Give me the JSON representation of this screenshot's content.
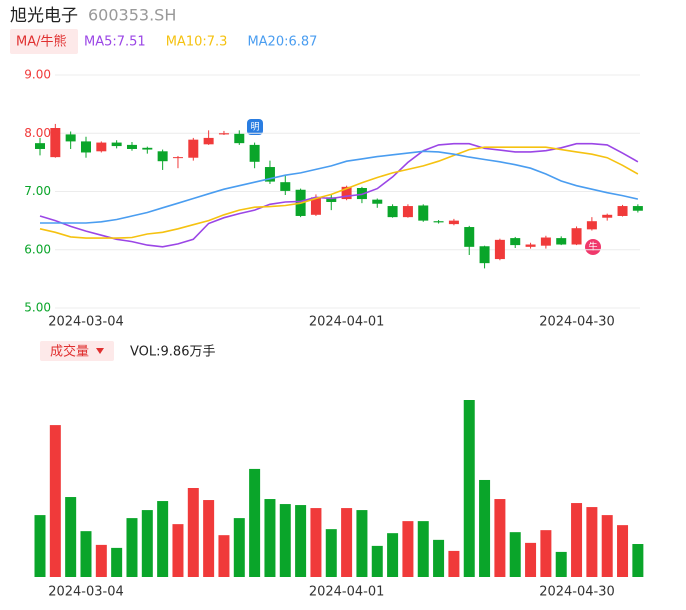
{
  "header": {
    "title": "旭光电子",
    "code": "600353.SH",
    "legend_title": "MA/牛熊",
    "annotations": [
      "明",
      "牛"
    ]
  },
  "chart_data": [
    {
      "type": "candlestick",
      "categories": [
        "2024-03-04",
        null,
        null,
        null,
        null,
        null,
        null,
        null,
        null,
        null,
        null,
        null,
        null,
        null,
        null,
        null,
        null,
        null,
        null,
        null,
        "2024-04-01",
        null,
        null,
        null,
        null,
        null,
        null,
        null,
        null,
        null,
        null,
        null,
        null,
        null,
        null,
        null,
        null,
        null,
        null,
        "2024-04-30"
      ],
      "open": [
        7.83,
        7.59,
        7.98,
        7.86,
        7.69,
        7.84,
        7.8,
        7.75,
        7.69,
        7.58,
        7.58,
        7.81,
        7.98,
        7.99,
        7.8,
        7.42,
        7.16,
        7.03,
        6.6,
        6.9,
        6.87,
        7.06,
        6.86,
        6.75,
        6.56,
        6.76,
        6.49,
        6.44,
        6.39,
        6.06,
        5.84,
        6.2,
        6.05,
        6.07,
        6.2,
        6.09,
        6.35,
        6.55,
        6.58,
        6.75
      ],
      "high": [
        7.92,
        8.16,
        8.03,
        7.94,
        7.86,
        7.88,
        7.85,
        7.77,
        7.72,
        7.61,
        7.92,
        8.05,
        8.04,
        8.05,
        7.84,
        7.53,
        7.28,
        7.05,
        6.95,
        6.95,
        7.1,
        7.08,
        6.88,
        6.78,
        6.78,
        6.78,
        6.51,
        6.53,
        6.41,
        6.07,
        6.19,
        6.22,
        6.12,
        6.24,
        6.23,
        6.4,
        6.56,
        6.62,
        6.77,
        6.78
      ],
      "low": [
        7.62,
        7.58,
        7.73,
        7.58,
        7.67,
        7.74,
        7.7,
        7.65,
        7.37,
        7.4,
        7.53,
        7.8,
        7.97,
        7.8,
        7.4,
        7.13,
        6.94,
        6.56,
        6.58,
        6.68,
        6.85,
        6.8,
        6.72,
        6.55,
        6.55,
        6.48,
        6.45,
        6.42,
        5.91,
        5.68,
        5.82,
        6.03,
        6.02,
        6.02,
        6.08,
        6.08,
        6.33,
        6.5,
        6.57,
        6.64
      ],
      "close": [
        7.73,
        8.09,
        7.86,
        7.67,
        7.84,
        7.78,
        7.73,
        7.72,
        7.52,
        7.59,
        7.89,
        7.92,
        8.0,
        7.83,
        7.51,
        7.17,
        7.01,
        6.58,
        6.9,
        6.82,
        7.08,
        6.87,
        6.79,
        6.56,
        6.75,
        6.5,
        6.47,
        6.5,
        6.05,
        5.77,
        6.17,
        6.08,
        6.09,
        6.21,
        6.09,
        6.37,
        6.49,
        6.6,
        6.75,
        6.67
      ],
      "up_color": "#f03a3a",
      "down_color": "#0aa52a",
      "series": [
        {
          "name": "MA5:7.51",
          "color": "#9b46e6",
          "values": [
            6.58,
            6.5,
            6.4,
            6.32,
            6.25,
            6.18,
            6.14,
            6.08,
            6.05,
            6.1,
            6.18,
            6.45,
            6.55,
            6.62,
            6.68,
            6.78,
            6.82,
            6.83,
            6.9,
            6.88,
            6.92,
            6.95,
            7.05,
            7.25,
            7.5,
            7.7,
            7.8,
            7.82,
            7.82,
            7.74,
            7.71,
            7.68,
            7.68,
            7.7,
            7.75,
            7.82,
            7.82,
            7.8,
            7.66,
            7.51
          ]
        },
        {
          "name": "MA10:7.3",
          "color": "#f5c211",
          "values": [
            6.36,
            6.3,
            6.22,
            6.2,
            6.2,
            6.2,
            6.21,
            6.27,
            6.3,
            6.36,
            6.43,
            6.5,
            6.6,
            6.68,
            6.73,
            6.74,
            6.76,
            6.8,
            6.88,
            6.95,
            7.05,
            7.15,
            7.24,
            7.32,
            7.38,
            7.44,
            7.52,
            7.62,
            7.72,
            7.76,
            7.76,
            7.76,
            7.76,
            7.76,
            7.72,
            7.68,
            7.64,
            7.58,
            7.45,
            7.3
          ]
        },
        {
          "name": "MA20:6.87",
          "color": "#4a9df0",
          "values": [
            6.46,
            6.46,
            6.46,
            6.46,
            6.48,
            6.52,
            6.58,
            6.64,
            6.72,
            6.8,
            6.88,
            6.96,
            7.04,
            7.1,
            7.16,
            7.22,
            7.28,
            7.32,
            7.38,
            7.44,
            7.52,
            7.56,
            7.6,
            7.63,
            7.66,
            7.69,
            7.68,
            7.64,
            7.59,
            7.55,
            7.51,
            7.46,
            7.4,
            7.3,
            7.18,
            7.1,
            7.04,
            6.98,
            6.93,
            6.87
          ]
        }
      ],
      "ylim": [
        5,
        9
      ],
      "yticks": [
        {
          "value": 5,
          "label": "5.00"
        },
        {
          "value": 6,
          "label": "6.00"
        },
        {
          "value": 7,
          "label": "7.00"
        },
        {
          "value": 8,
          "label": "8.00"
        },
        {
          "value": 9,
          "label": "9.00"
        }
      ],
      "ytick_colors": [
        "#0aa52a",
        "#0aa52a",
        "#0aa52a",
        "#f03a3a",
        "#f03a3a"
      ],
      "grid": true
    },
    {
      "type": "bar",
      "title": "成交量",
      "subtitle": "VOL:9.86万手",
      "categories": [
        "2024-03-04",
        null,
        null,
        null,
        null,
        null,
        null,
        null,
        null,
        null,
        null,
        null,
        null,
        null,
        null,
        null,
        null,
        null,
        null,
        null,
        "2024-04-01",
        null,
        null,
        null,
        null,
        null,
        null,
        null,
        null,
        null,
        null,
        null,
        null,
        null,
        null,
        null,
        null,
        null,
        null,
        "2024-04-30"
      ],
      "values": [
        18.5,
        45.4,
        23.9,
        13.7,
        9.6,
        8.7,
        17.6,
        20.0,
        22.7,
        15.8,
        26.6,
        23.0,
        12.5,
        17.6,
        32.3,
        23.3,
        21.8,
        21.5,
        20.6,
        14.3,
        20.6,
        20.0,
        9.3,
        13.1,
        16.7,
        16.7,
        11.1,
        7.8,
        52.9,
        29.0,
        23.3,
        13.4,
        10.2,
        14.0,
        7.5,
        22.1,
        20.9,
        18.5,
        15.5,
        9.86
      ]
    }
  ]
}
